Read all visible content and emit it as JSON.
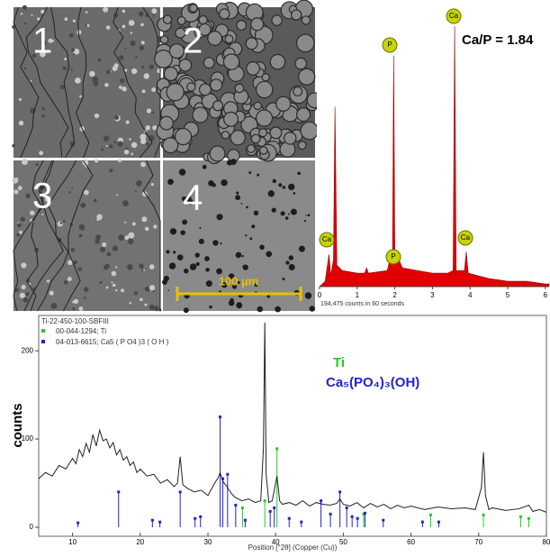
{
  "sem": {
    "panels": [
      "1",
      "2",
      "3",
      "4"
    ],
    "scale_bar": "100 µm"
  },
  "chart_data": [
    {
      "type": "area",
      "annotation": "Ca/P = 1.84",
      "caption": "194,475 counts in 60 seconds",
      "peak_labels": [
        "Ca",
        "P",
        "Ca",
        "P",
        "Ca"
      ],
      "color": "#e00000",
      "x": [
        0,
        0.15,
        0.25,
        0.3,
        0.37,
        0.41,
        0.46,
        0.6,
        1.0,
        1.2,
        1.25,
        1.3,
        1.8,
        1.94,
        1.97,
        2.0,
        2.05,
        2.2,
        2.6,
        3.0,
        3.4,
        3.55,
        3.59,
        3.63,
        3.85,
        3.9,
        3.95,
        4.5,
        5,
        5.5,
        6,
        6.1
      ],
      "values": [
        0,
        2,
        12,
        4,
        10,
        67,
        8,
        6,
        5,
        5,
        7,
        5,
        6,
        14,
        86,
        14,
        12,
        7,
        6,
        5,
        5,
        6,
        97,
        6,
        6,
        13,
        5,
        3,
        2,
        2,
        1,
        1
      ],
      "xlim": [
        0,
        6.1
      ],
      "xticks": [
        0,
        1,
        2,
        3,
        4,
        5,
        6
      ],
      "ylim": [
        0,
        100
      ]
    },
    {
      "type": "line",
      "title": "Ti-22-450-100-SBFIII",
      "color": "#222222",
      "xlabel": "Position [°2θ] (Copper (Cu))",
      "ylabel": "counts",
      "x": [
        5,
        6,
        7,
        8,
        9,
        10,
        10.5,
        11,
        11.5,
        12,
        12.5,
        13,
        13.5,
        14,
        14.5,
        15,
        15.5,
        16,
        16.5,
        17,
        17.5,
        18,
        18.5,
        19,
        19.5,
        20,
        21,
        22,
        23,
        24,
        25,
        25.5,
        25.9,
        26.3,
        27,
        28,
        29,
        30,
        31,
        31.5,
        31.8,
        32.2,
        32.8,
        33.5,
        34,
        35,
        36,
        37,
        37.8,
        38.2,
        38.4,
        38.6,
        39,
        39.5,
        40.2,
        40.6,
        41,
        42,
        43,
        44,
        45,
        46,
        47,
        48,
        49,
        49.5,
        50,
        51,
        52,
        53,
        54,
        55,
        56,
        57,
        58,
        59,
        60,
        62,
        64,
        66,
        68,
        69.5,
        70.4,
        70.7,
        71,
        71.5,
        72,
        74,
        76,
        77.4,
        78,
        79,
        80
      ],
      "values": [
        55,
        62,
        58,
        70,
        66,
        78,
        72,
        88,
        80,
        95,
        85,
        105,
        92,
        110,
        98,
        100,
        90,
        96,
        82,
        88,
        76,
        80,
        70,
        74,
        62,
        66,
        58,
        60,
        50,
        54,
        46,
        50,
        80,
        48,
        44,
        40,
        42,
        36,
        50,
        56,
        62,
        52,
        46,
        38,
        34,
        30,
        32,
        28,
        30,
        90,
        232,
        60,
        28,
        30,
        58,
        30,
        26,
        28,
        25,
        30,
        24,
        28,
        26,
        25,
        27,
        32,
        26,
        24,
        28,
        22,
        27,
        23,
        26,
        21,
        25,
        22,
        24,
        20,
        23,
        21,
        22,
        20,
        45,
        85,
        36,
        20,
        22,
        19,
        21,
        25,
        18,
        20,
        17
      ],
      "references": [
        {
          "name": "00-044-1294; Ti",
          "label": "Ti",
          "color": "#22cc22",
          "x": [
            35.1,
            38.4,
            40.2,
            53.0,
            62.9,
            70.7,
            76.2,
            77.4
          ],
          "values": [
            22,
            30,
            89,
            15,
            14,
            14,
            12,
            10
          ]
        },
        {
          "name": "04-013-6615; Ca5 ( P O4 )3 ( O H )",
          "label": "Ca₅(PO₄)₃(OH)",
          "color": "#2222cc",
          "x": [
            10.8,
            16.8,
            21.8,
            22.9,
            25.9,
            28.1,
            28.9,
            31.8,
            32.2,
            32.9,
            34.1,
            35.5,
            39.2,
            39.8,
            42.0,
            43.8,
            46.7,
            48.1,
            49.5,
            50.5,
            51.3,
            52.1,
            53.2,
            55.9,
            61.7,
            64.1
          ],
          "values": [
            5,
            40,
            8,
            6,
            40,
            10,
            12,
            125,
            55,
            60,
            25,
            8,
            18,
            22,
            10,
            6,
            30,
            15,
            40,
            22,
            12,
            10,
            16,
            8,
            6,
            6
          ]
        }
      ],
      "xlim": [
        5,
        80
      ],
      "xticks": [
        10,
        20,
        30,
        40,
        50,
        60,
        70,
        80
      ],
      "ylim": [
        0,
        240
      ],
      "yticks": [
        0,
        100,
        200
      ]
    }
  ]
}
